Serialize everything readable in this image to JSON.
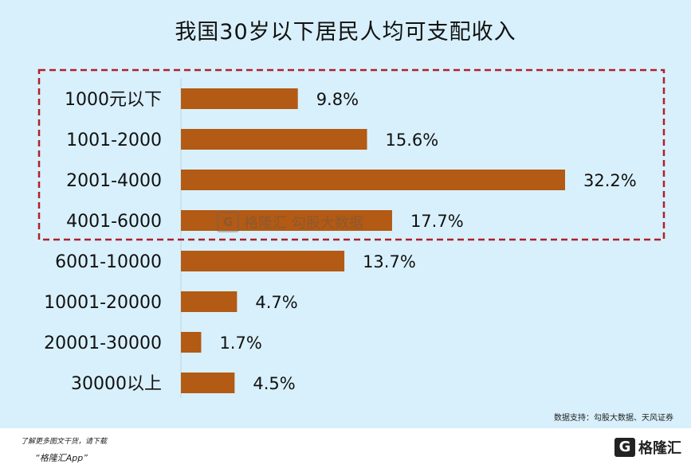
{
  "chart_data": {
    "type": "bar",
    "orientation": "horizontal",
    "title": "我国30岁以下居民人均可支配收入",
    "categories": [
      "1000元以下",
      "1001-2000",
      "2001-4000",
      "4001-6000",
      "6001-10000",
      "10001-20000",
      "20001-30000",
      "30000以上"
    ],
    "values": [
      9.8,
      15.6,
      32.2,
      17.7,
      13.7,
      4.7,
      1.7,
      4.5
    ],
    "value_labels": [
      "9.8%",
      "15.6%",
      "32.2%",
      "17.7%",
      "13.7%",
      "4.7%",
      "1.7%",
      "4.5%"
    ],
    "bar_color": "#b35a14",
    "highlight_box_color": "#b0202a",
    "highlighted_categories": [
      "1000元以下",
      "1001-2000",
      "2001-4000",
      "4001-6000"
    ],
    "grid": false,
    "legend": false
  },
  "source": "数据支持：勾股大数据、天风证券",
  "footer": {
    "note": "了解更多图文干货，请下载",
    "app": "“格隆汇App”"
  },
  "brand": {
    "mark": "G",
    "name": "格隆汇"
  },
  "watermark": {
    "mark": "G",
    "left_text": "格隆汇",
    "right_text": "勾股大数据"
  }
}
